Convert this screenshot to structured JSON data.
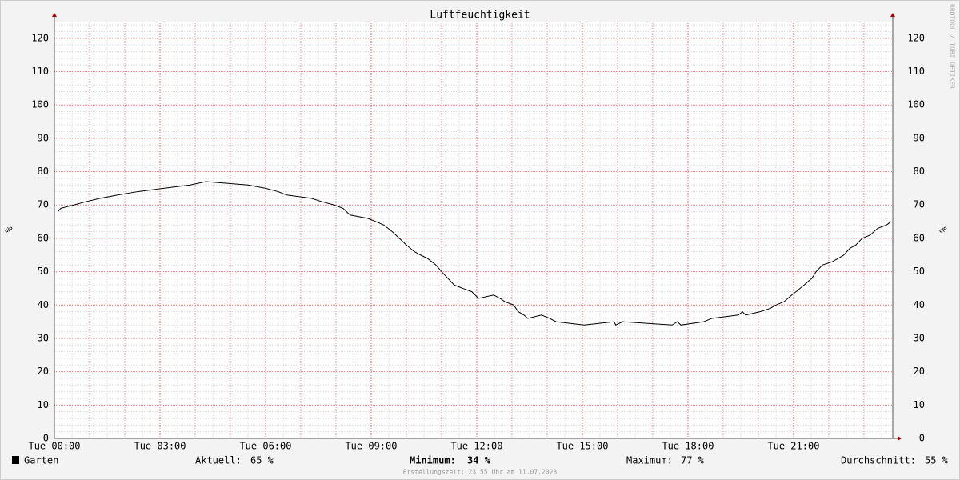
{
  "chart_data": {
    "type": "line",
    "title": "Luftfeuchtigkeit",
    "y_label": "%",
    "watermark": "RRDTOOL / TOBI OETIKER",
    "x": [
      0.1,
      0.18,
      0.55,
      0.9,
      1.3,
      1.8,
      2.36,
      3.1,
      3.86,
      4.3,
      5.5,
      6.0,
      6.36,
      6.6,
      7.3,
      7.6,
      7.95,
      8.2,
      8.4,
      8.9,
      9.14,
      9.36,
      9.6,
      9.8,
      10.0,
      10.23,
      10.4,
      10.6,
      10.84,
      11.0,
      11.18,
      11.36,
      11.6,
      11.86,
      12.05,
      12.48,
      12.66,
      12.8,
      13.05,
      13.18,
      13.34,
      13.45,
      13.84,
      14.07,
      14.25,
      15.05,
      15.9,
      15.95,
      16.14,
      17.55,
      17.7,
      17.8,
      18.45,
      18.68,
      19.43,
      19.55,
      19.64,
      20.05,
      20.34,
      20.5,
      20.73,
      20.95,
      21.07,
      21.3,
      21.52,
      21.64,
      21.82,
      22.1,
      22.27,
      22.43,
      22.6,
      22.77,
      22.95,
      23.18,
      23.39,
      23.64,
      23.77
    ],
    "series": [
      {
        "name": "Garten",
        "color": "#000000",
        "values": [
          68,
          69,
          70,
          71,
          72,
          73,
          74,
          75,
          76,
          77,
          76,
          75,
          74,
          73,
          72,
          71,
          70,
          69,
          67,
          66,
          65,
          64,
          62,
          60,
          58,
          56,
          55,
          54,
          52,
          50,
          48,
          46,
          45,
          44,
          42,
          43,
          42,
          41,
          40,
          38,
          37,
          36,
          37,
          36,
          35,
          34,
          35,
          34,
          35,
          34,
          35,
          34,
          35,
          36,
          37,
          38,
          37,
          38,
          39,
          40,
          41,
          43,
          44,
          46,
          48,
          50,
          52,
          53,
          54,
          55,
          57,
          58,
          60,
          61,
          63,
          64,
          65
        ]
      }
    ],
    "xlim": [
      0,
      23.82
    ],
    "xticks": [
      {
        "value": 0,
        "label": "Tue 00:00"
      },
      {
        "value": 3,
        "label": "Tue 03:00"
      },
      {
        "value": 6,
        "label": "Tue 06:00"
      },
      {
        "value": 9,
        "label": "Tue 09:00"
      },
      {
        "value": 12,
        "label": "Tue 12:00"
      },
      {
        "value": 15,
        "label": "Tue 15:00"
      },
      {
        "value": 18,
        "label": "Tue 18:00"
      },
      {
        "value": 21,
        "label": "Tue 21:00"
      }
    ],
    "ylim": [
      0,
      125
    ],
    "yticks": [
      0,
      10,
      20,
      30,
      40,
      50,
      60,
      70,
      80,
      90,
      100,
      110,
      120
    ],
    "grid": true,
    "stats": {
      "labels": [
        "Aktuell:",
        "Minimum:",
        "Maximum:",
        "Durchschnitt:"
      ],
      "values": [
        65,
        34,
        77,
        55
      ],
      "value_labels": [
        "65 %",
        "34 %",
        "77 %",
        "55 %"
      ]
    },
    "footer": "Erstellungszeit: 23:55 Uhr am 11.07.2023"
  }
}
